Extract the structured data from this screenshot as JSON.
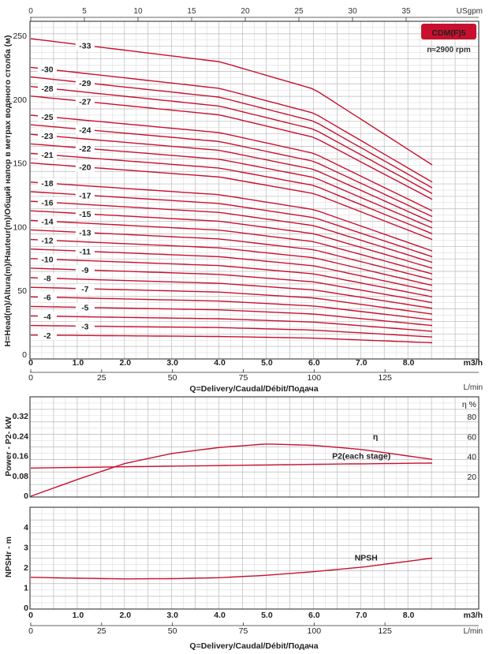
{
  "colors": {
    "curve": "#c8102e",
    "badge_bg": "#c8102e",
    "badge_text": "#ffffff",
    "grid": "#d0d0d0"
  },
  "badge": {
    "model": "CDM(F)5",
    "speed": "n≈2900 rpm"
  },
  "chart_data": [
    {
      "type": "line",
      "name": "head-curves",
      "ylabel": "H=Head(m)/Altura(m)/Hauteur(m)/Общий напор в метрах водяного столба (м)",
      "xlabel": "Q=Delivery/Caudal/Débit/Подача",
      "x_unit": "m3/h",
      "x_unit_lpm": "L/min",
      "top_unit": "USgpm",
      "xlim": [
        0,
        8.5
      ],
      "ylim": [
        0,
        255
      ],
      "x_ticks": [
        "0",
        "1.0",
        "2.0",
        "3.0",
        "4.0",
        "5.0",
        "6.0",
        "7.0",
        "8.0"
      ],
      "y_ticks": [
        "0",
        "50",
        "100",
        "150",
        "200",
        "250"
      ],
      "lpm_ticks": [
        "0",
        "25",
        "50",
        "75",
        "100",
        "125"
      ],
      "usgpm_ticks": [
        "0",
        "5",
        "10",
        "15",
        "20",
        "25",
        "30",
        "35"
      ],
      "grid": true,
      "stage_labels": [
        "-2",
        "-3",
        "-4",
        "-5",
        "-6",
        "-7",
        "-8",
        "-9",
        "-10",
        "-11",
        "-12",
        "-13",
        "-14",
        "-15",
        "-16",
        "-17",
        "-18",
        "-20",
        "-21",
        "-22",
        "-23",
        "-24",
        "-25",
        "-27",
        "-28",
        "-29",
        "-30",
        "-33"
      ],
      "series": [
        {
          "name": "-2",
          "values": [
            [
              0,
              15
            ],
            [
              4,
              13.9
            ],
            [
              6,
              12.6
            ],
            [
              8.5,
              9
            ]
          ]
        },
        {
          "name": "-3",
          "values": [
            [
              0,
              22.5
            ],
            [
              4,
              20.9
            ],
            [
              6,
              18.9
            ],
            [
              8.5,
              13.5
            ]
          ]
        },
        {
          "name": "-4",
          "values": [
            [
              0,
              30
            ],
            [
              4,
              27.8
            ],
            [
              6,
              25.2
            ],
            [
              8.5,
              18
            ]
          ]
        },
        {
          "name": "-5",
          "values": [
            [
              0,
              37.5
            ],
            [
              4,
              34.8
            ],
            [
              6,
              31.5
            ],
            [
              8.5,
              22.5
            ]
          ]
        },
        {
          "name": "-6",
          "values": [
            [
              0,
              45
            ],
            [
              4,
              41.7
            ],
            [
              6,
              37.8
            ],
            [
              8.5,
              27
            ]
          ]
        },
        {
          "name": "-7",
          "values": [
            [
              0,
              52.5
            ],
            [
              4,
              48.7
            ],
            [
              6,
              44.1
            ],
            [
              8.5,
              31.5
            ]
          ]
        },
        {
          "name": "-8",
          "values": [
            [
              0,
              60
            ],
            [
              4,
              55.6
            ],
            [
              6,
              50.4
            ],
            [
              8.5,
              36
            ]
          ]
        },
        {
          "name": "-9",
          "values": [
            [
              0,
              67.5
            ],
            [
              4,
              62.6
            ],
            [
              6,
              56.7
            ],
            [
              8.5,
              40.5
            ]
          ]
        },
        {
          "name": "-10",
          "values": [
            [
              0,
              75
            ],
            [
              4,
              69.5
            ],
            [
              6,
              63
            ],
            [
              8.5,
              45
            ]
          ]
        },
        {
          "name": "-11",
          "values": [
            [
              0,
              82.5
            ],
            [
              4,
              76.5
            ],
            [
              6,
              69.3
            ],
            [
              8.5,
              49.5
            ]
          ]
        },
        {
          "name": "-12",
          "values": [
            [
              0,
              90
            ],
            [
              4,
              83.4
            ],
            [
              6,
              75.6
            ],
            [
              8.5,
              54
            ]
          ]
        },
        {
          "name": "-13",
          "values": [
            [
              0,
              97.5
            ],
            [
              4,
              90.4
            ],
            [
              6,
              81.9
            ],
            [
              8.5,
              58.5
            ]
          ]
        },
        {
          "name": "-14",
          "values": [
            [
              0,
              105
            ],
            [
              4,
              97.3
            ],
            [
              6,
              88.2
            ],
            [
              8.5,
              63
            ]
          ]
        },
        {
          "name": "-15",
          "values": [
            [
              0,
              112.5
            ],
            [
              4,
              104.3
            ],
            [
              6,
              94.5
            ],
            [
              8.5,
              67.5
            ]
          ]
        },
        {
          "name": "-16",
          "values": [
            [
              0,
              120
            ],
            [
              4,
              111.2
            ],
            [
              6,
              100.8
            ],
            [
              8.5,
              72
            ]
          ]
        },
        {
          "name": "-17",
          "values": [
            [
              0,
              127.5
            ],
            [
              4,
              118.2
            ],
            [
              6,
              107.1
            ],
            [
              8.5,
              76.5
            ]
          ]
        },
        {
          "name": "-18",
          "values": [
            [
              0,
              135
            ],
            [
              4,
              125.1
            ],
            [
              6,
              113.4
            ],
            [
              8.5,
              81
            ]
          ]
        },
        {
          "name": "-20",
          "values": [
            [
              0,
              150
            ],
            [
              4,
              139
            ],
            [
              6,
              126
            ],
            [
              8.5,
              90
            ]
          ]
        },
        {
          "name": "-21",
          "values": [
            [
              0,
              157.5
            ],
            [
              4,
              146
            ],
            [
              6,
              132.3
            ],
            [
              8.5,
              94.5
            ]
          ]
        },
        {
          "name": "-22",
          "values": [
            [
              0,
              165
            ],
            [
              4,
              152.9
            ],
            [
              6,
              138.6
            ],
            [
              8.5,
              99
            ]
          ]
        },
        {
          "name": "-23",
          "values": [
            [
              0,
              172.5
            ],
            [
              4,
              159.9
            ],
            [
              6,
              144.9
            ],
            [
              8.5,
              103.5
            ]
          ]
        },
        {
          "name": "-24",
          "values": [
            [
              0,
              180
            ],
            [
              4,
              166.8
            ],
            [
              6,
              151.2
            ],
            [
              8.5,
              108
            ]
          ]
        },
        {
          "name": "-25",
          "values": [
            [
              0,
              187.5
            ],
            [
              4,
              173.8
            ],
            [
              6,
              157.5
            ],
            [
              8.5,
              112.5
            ]
          ]
        },
        {
          "name": "-27",
          "values": [
            [
              0,
              202.5
            ],
            [
              4,
              187.7
            ],
            [
              6,
              170.1
            ],
            [
              8.5,
              121.5
            ]
          ]
        },
        {
          "name": "-28",
          "values": [
            [
              0,
              210
            ],
            [
              4,
              194.6
            ],
            [
              6,
              176.4
            ],
            [
              8.5,
              126
            ]
          ]
        },
        {
          "name": "-29",
          "values": [
            [
              0,
              217.5
            ],
            [
              4,
              201.6
            ],
            [
              6,
              182.7
            ],
            [
              8.5,
              130.5
            ]
          ]
        },
        {
          "name": "-30",
          "values": [
            [
              0,
              225
            ],
            [
              4,
              208.5
            ],
            [
              6,
              189
            ],
            [
              8.5,
              135
            ]
          ]
        },
        {
          "name": "-33",
          "values": [
            [
              0,
              247.5
            ],
            [
              4,
              229.4
            ],
            [
              6,
              207.9
            ],
            [
              8.5,
              148.5
            ]
          ]
        }
      ]
    },
    {
      "type": "line",
      "name": "power-efficiency",
      "ylabel": "Power - P2- kW",
      "ylabel_right": "η %",
      "xlim": [
        0,
        8.5
      ],
      "ylim": [
        0,
        0.38
      ],
      "y_ticks": [
        "0",
        "0.08",
        "0.16",
        "0.24",
        "0.32"
      ],
      "y_right_ticks": [
        "20",
        "40",
        "60",
        "80"
      ],
      "series": [
        {
          "name": "η",
          "axis": "right",
          "values": [
            [
              0,
              0
            ],
            [
              1,
              17
            ],
            [
              2,
              33
            ],
            [
              3,
              43
            ],
            [
              4,
              49
            ],
            [
              5,
              52.5
            ],
            [
              6,
              51
            ],
            [
              7,
              47
            ],
            [
              8.5,
              37
            ]
          ]
        },
        {
          "name": "P2(each stage)",
          "axis": "left",
          "values": [
            [
              0,
              0.11
            ],
            [
              2,
              0.115
            ],
            [
              4,
              0.12
            ],
            [
              6,
              0.125
            ],
            [
              8.5,
              0.13
            ]
          ]
        }
      ]
    },
    {
      "type": "line",
      "name": "npsh",
      "ylabel": "NPSHr - m",
      "xlabel": "Q=Delivery/Caudal/Débit/Подача",
      "x_unit": "m3/h",
      "x_unit_lpm": "L/min",
      "xlim": [
        0,
        8.5
      ],
      "ylim": [
        0,
        4.6
      ],
      "x_ticks": [
        "0",
        "1.0",
        "2.0",
        "3.0",
        "4.0",
        "5.0",
        "6.0",
        "7.0",
        "8.0"
      ],
      "y_ticks": [
        "0",
        "1",
        "2",
        "3",
        "4"
      ],
      "lpm_ticks": [
        "0",
        "25",
        "50",
        "75",
        "100",
        "125"
      ],
      "series": [
        {
          "name": "NPSH",
          "values": [
            [
              0,
              1.5
            ],
            [
              1,
              1.45
            ],
            [
              2,
              1.42
            ],
            [
              3,
              1.43
            ],
            [
              4,
              1.48
            ],
            [
              5,
              1.6
            ],
            [
              6,
              1.78
            ],
            [
              7,
              2
            ],
            [
              8.5,
              2.45
            ]
          ]
        }
      ]
    }
  ]
}
